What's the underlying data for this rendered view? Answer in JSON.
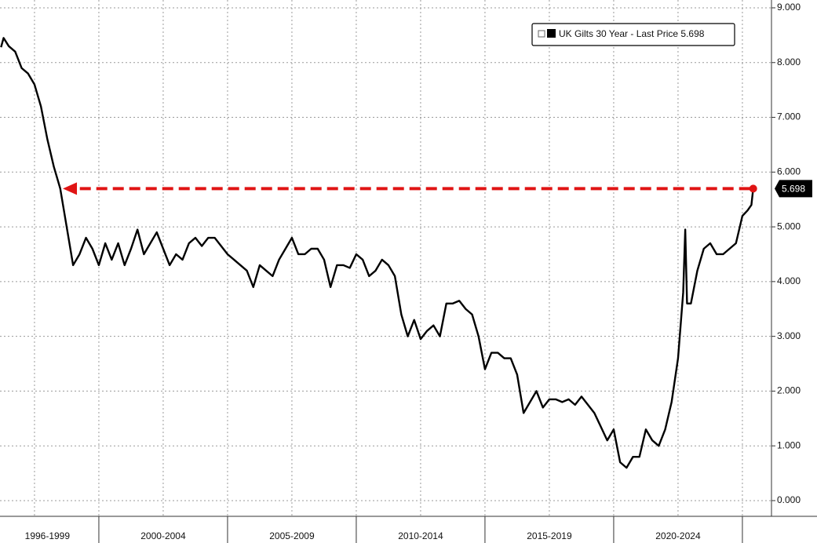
{
  "chart_data": {
    "type": "line",
    "x": [
      1996.2,
      1996.3,
      1996.5,
      1996.75,
      1997.0,
      1997.25,
      1997.5,
      1997.75,
      1998.0,
      1998.25,
      1998.5,
      1998.75,
      1999.0,
      1999.25,
      1999.5,
      1999.75,
      2000.0,
      2000.25,
      2000.5,
      2000.75,
      2001.0,
      2001.25,
      2001.5,
      2001.75,
      2002.0,
      2002.25,
      2002.5,
      2002.75,
      2003.0,
      2003.25,
      2003.5,
      2003.75,
      2004.0,
      2004.25,
      2004.5,
      2004.75,
      2005.0,
      2005.25,
      2005.5,
      2005.75,
      2006.0,
      2006.25,
      2006.5,
      2006.75,
      2007.0,
      2007.25,
      2007.5,
      2007.75,
      2008.0,
      2008.25,
      2008.5,
      2008.75,
      2009.0,
      2009.25,
      2009.5,
      2009.75,
      2010.0,
      2010.25,
      2010.5,
      2010.75,
      2011.0,
      2011.25,
      2011.5,
      2011.75,
      2012.0,
      2012.25,
      2012.5,
      2012.75,
      2013.0,
      2013.25,
      2013.5,
      2013.75,
      2014.0,
      2014.25,
      2014.5,
      2014.75,
      2015.0,
      2015.25,
      2015.5,
      2015.75,
      2016.0,
      2016.25,
      2016.5,
      2016.75,
      2017.0,
      2017.25,
      2017.5,
      2017.75,
      2018.0,
      2018.25,
      2018.5,
      2018.75,
      2019.0,
      2019.25,
      2019.5,
      2019.75,
      2020.0,
      2020.25,
      2020.5,
      2020.75,
      2021.0,
      2021.25,
      2021.5,
      2021.75,
      2022.0,
      2022.25,
      2022.5,
      2022.7,
      2022.78,
      2022.85,
      2023.0,
      2023.25,
      2023.5,
      2023.75,
      2024.0,
      2024.25,
      2024.5,
      2024.75,
      2025.0,
      2025.2,
      2025.35,
      2025.42
    ],
    "series": [
      {
        "name": "UK Gilts 30 Year - Last Price 5.698",
        "color": "#000000",
        "values": [
          8.28,
          8.45,
          8.3,
          8.2,
          7.9,
          7.8,
          7.6,
          7.2,
          6.6,
          6.1,
          5.7,
          5.0,
          4.3,
          4.5,
          4.8,
          4.6,
          4.3,
          4.7,
          4.4,
          4.7,
          4.3,
          4.6,
          4.95,
          4.5,
          4.7,
          4.9,
          4.6,
          4.3,
          4.5,
          4.4,
          4.7,
          4.8,
          4.65,
          4.8,
          4.8,
          4.65,
          4.5,
          4.4,
          4.3,
          4.2,
          3.9,
          4.3,
          4.2,
          4.1,
          4.4,
          4.6,
          4.8,
          4.5,
          4.5,
          4.6,
          4.6,
          4.4,
          3.9,
          4.3,
          4.3,
          4.25,
          4.5,
          4.4,
          4.1,
          4.2,
          4.4,
          4.3,
          4.1,
          3.4,
          3.0,
          3.3,
          2.95,
          3.1,
          3.2,
          3.0,
          3.6,
          3.6,
          3.65,
          3.5,
          3.4,
          3.0,
          2.4,
          2.7,
          2.7,
          2.6,
          2.6,
          2.3,
          1.6,
          1.8,
          2.0,
          1.7,
          1.85,
          1.85,
          1.8,
          1.85,
          1.75,
          1.9,
          1.75,
          1.6,
          1.35,
          1.1,
          1.3,
          0.7,
          0.6,
          0.8,
          0.8,
          1.3,
          1.1,
          1.0,
          1.3,
          1.8,
          2.6,
          3.8,
          4.95,
          3.6,
          3.6,
          4.2,
          4.6,
          4.7,
          4.5,
          4.5,
          4.6,
          4.7,
          5.2,
          5.3,
          5.4,
          5.698
        ]
      }
    ],
    "xlim": [
      1996.16,
      2026.13
    ],
    "ylim": [
      -0.287,
      9.143
    ],
    "yticks": [
      {
        "value": 0,
        "label": "0.000"
      },
      {
        "value": 1,
        "label": "1.000"
      },
      {
        "value": 2,
        "label": "2.000"
      },
      {
        "value": 3,
        "label": "3.000"
      },
      {
        "value": 4,
        "label": "4.000"
      },
      {
        "value": 5,
        "label": "5.000"
      },
      {
        "value": 6,
        "label": "6.000"
      },
      {
        "value": 7,
        "label": "7.000"
      },
      {
        "value": 8,
        "label": "8.000"
      },
      {
        "value": 9,
        "label": "9.000"
      }
    ],
    "x_gridlines": [
      1997.5,
      2000,
      2002.5,
      2005,
      2007.5,
      2010,
      2012.5,
      2015,
      2017.5,
      2020,
      2022.5,
      2025
    ],
    "x_bands": [
      {
        "label": "1996-1999",
        "from": 1996,
        "to": 2000
      },
      {
        "label": "2000-2004",
        "from": 2000,
        "to": 2005
      },
      {
        "label": "2005-2009",
        "from": 2005,
        "to": 2010
      },
      {
        "label": "2010-2014",
        "from": 2010,
        "to": 2015
      },
      {
        "label": "2015-2019",
        "from": 2015,
        "to": 2020
      },
      {
        "label": "2020-2024",
        "from": 2020,
        "to": 2025
      }
    ],
    "annotations": [
      {
        "type": "arrow",
        "x_to": 1998.6,
        "color": "#e01414"
      }
    ],
    "grid": true,
    "legend": "top-right"
  }
}
